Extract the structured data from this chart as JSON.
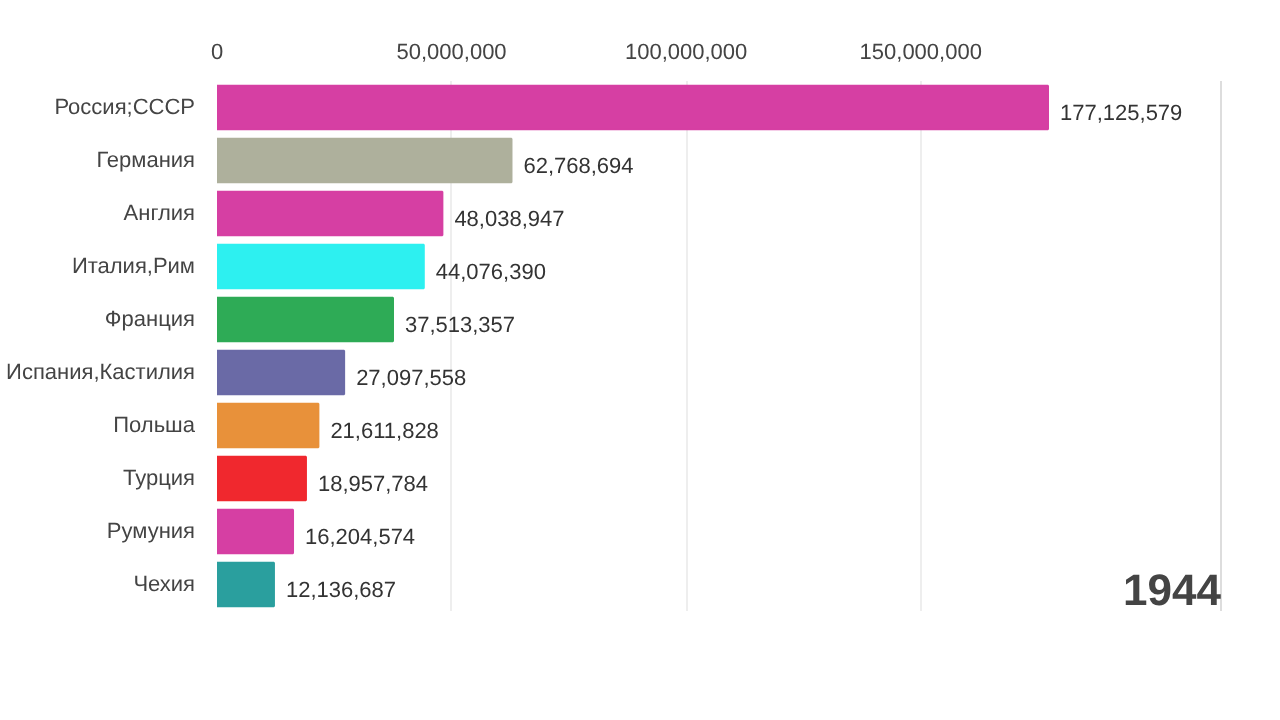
{
  "chart_data": {
    "type": "bar",
    "orientation": "horizontal",
    "categories": [
      "Россия;СССР",
      "Германия",
      "Англия",
      "Италия,Рим",
      "Франция",
      "Испания,Кастилия",
      "Польша",
      "Турция",
      "Румуния",
      "Чехия"
    ],
    "values": [
      177125579,
      62768694,
      48038947,
      44076390,
      37513357,
      27097558,
      21611828,
      18957784,
      16204574,
      12136687
    ],
    "colors": [
      "#d63fa3",
      "#aeb09c",
      "#d63fa3",
      "#2df0f0",
      "#2eab56",
      "#6a6aa6",
      "#e8913a",
      "#f0282e",
      "#d63fa3",
      "#2a9f9e"
    ],
    "xlim": [
      0,
      214000000
    ],
    "xticks": [
      {
        "value": 0,
        "label": "0"
      },
      {
        "value": 50000000,
        "label": "50,000,000"
      },
      {
        "value": 100000000,
        "label": "100,000,000"
      },
      {
        "value": 150000000,
        "label": "150,000,000"
      }
    ],
    "value_labels": [
      "177,125,579",
      "62,768,694",
      "48,038,947",
      "44,076,390",
      "37,513,357",
      "27,097,558",
      "21,611,828",
      "18,957,784",
      "16,204,574",
      "12,136,687"
    ],
    "grid": "x",
    "annotations": [
      "1944"
    ]
  }
}
